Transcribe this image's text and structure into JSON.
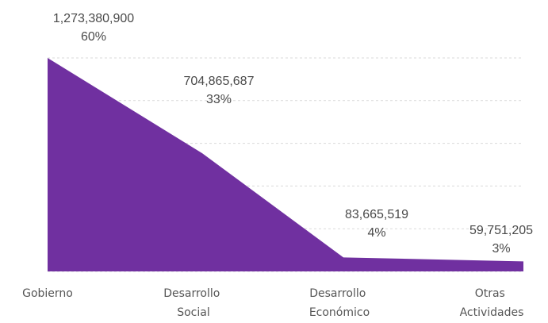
{
  "chart_data": {
    "type": "area",
    "categories": [
      "Gobierno",
      "Desarrollo Social",
      "Desarrollo Económico",
      "Otras Actividades"
    ],
    "category_lines": [
      [
        "Gobierno"
      ],
      [
        "Desarrollo",
        "Social"
      ],
      [
        "Desarrollo",
        "Económico"
      ],
      [
        "Otras",
        "Actividades"
      ]
    ],
    "values": [
      1273380900,
      704865687,
      83665519,
      59751205
    ],
    "value_labels": [
      "1,273,380,900",
      "704,865,687",
      "83,665,519",
      "59,751,205"
    ],
    "percent_labels": [
      "60%",
      "33%",
      "4%",
      "3%"
    ],
    "ylim": [
      0,
      1273380900
    ],
    "grid": true,
    "legend": "none"
  },
  "colors": {
    "area_fill": "#7030A0",
    "label_text": "#4a4a4a",
    "category_text": "#555555",
    "grid": "#d9d9d9"
  }
}
